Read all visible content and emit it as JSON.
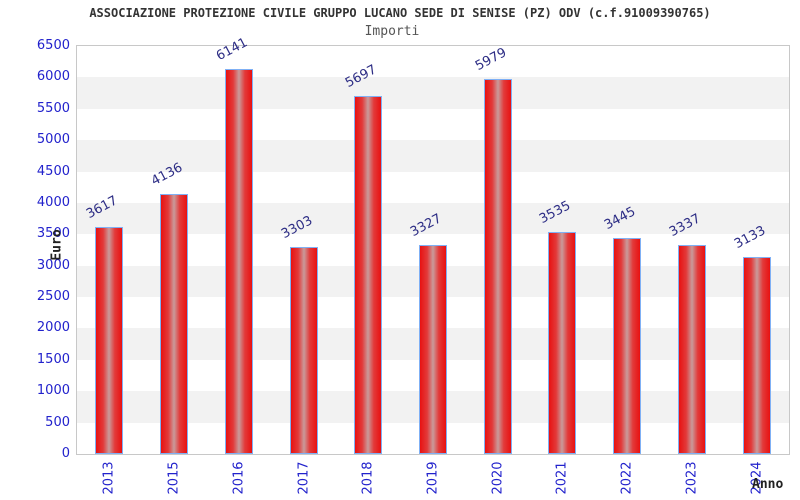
{
  "chart_data": {
    "type": "bar",
    "title": "ASSOCIAZIONE PROTEZIONE CIVILE GRUPPO LUCANO SEDE DI SENISE (PZ) ODV (c.f.91009390765)",
    "subtitle": "Importi",
    "xlabel": "Anno",
    "ylabel": "Euro",
    "categories": [
      "2013",
      "2015",
      "2016",
      "2017",
      "2018",
      "2019",
      "2020",
      "2021",
      "2022",
      "2023",
      "2024"
    ],
    "values": [
      3617,
      4136,
      6141,
      3303,
      5697,
      3327,
      5979,
      3535,
      3445,
      3337,
      3133
    ],
    "ylim": [
      0,
      6500
    ],
    "yticks": [
      0,
      500,
      1000,
      1500,
      2000,
      2500,
      3000,
      3500,
      4000,
      4500,
      5000,
      5500,
      6000,
      6500
    ],
    "grid": "alternating-horizontal-bands",
    "legend_position": "none",
    "colors": {
      "bar_edge_red": "#e81111",
      "bar_center": "#c99b9b",
      "bar_border_blue": "#7fb0f5",
      "tick_label_blue": "#2222cc",
      "value_label_navy": "#2d2d85",
      "band_gray": "#f2f2f2",
      "band_white": "#ffffff",
      "plot_border": "#c8c8c8",
      "title_color": "#333333",
      "subtitle_color": "#555555",
      "axis_title_color": "#222222"
    }
  }
}
